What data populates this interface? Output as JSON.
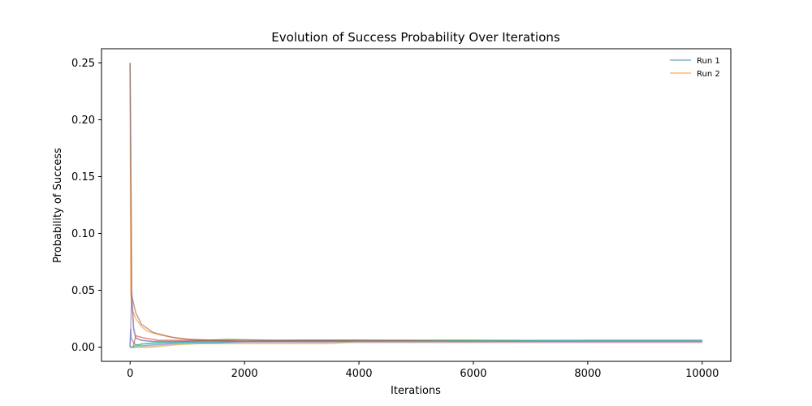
{
  "chart_data": {
    "type": "line",
    "title": "Evolution of Success Probability Over Iterations",
    "xlabel": "Iterations",
    "ylabel": "Probability of Success",
    "xlim": [
      -500,
      10500
    ],
    "ylim": [
      -0.0125,
      0.2625
    ],
    "xticks": [
      0,
      2000,
      4000,
      6000,
      8000,
      10000
    ],
    "xtick_labels": [
      "0",
      "2000",
      "4000",
      "6000",
      "8000",
      "10000"
    ],
    "yticks": [
      0.0,
      0.05,
      0.1,
      0.15,
      0.2,
      0.25
    ],
    "ytick_labels": [
      "0.00",
      "0.05",
      "0.10",
      "0.15",
      "0.20",
      "0.25"
    ],
    "grid": false,
    "legend_position": "top-right",
    "legend": [
      "Run 1",
      "Run 2"
    ],
    "series": [
      {
        "name": "Run 1",
        "color": "#1f77b4",
        "x": [
          0,
          10,
          20,
          60,
          100,
          200,
          400,
          700,
          1000,
          1500,
          2000,
          3000,
          4000,
          5000,
          6000,
          7000,
          8000,
          9000,
          10000
        ],
        "y": [
          0,
          0.016,
          0.008,
          0.004,
          0.002,
          0.001,
          0.002,
          0.003,
          0.004,
          0.004,
          0.005,
          0.006,
          0.006,
          0.006,
          0.006,
          0.006,
          0.006,
          0.006,
          0.006
        ]
      },
      {
        "name": "Run 2",
        "color": "#ff7f0e",
        "x": [
          0,
          10,
          30,
          60,
          100,
          200,
          300,
          500,
          800,
          1200,
          2000,
          3000,
          4000,
          5000,
          6000,
          7000,
          8000,
          9000,
          10000
        ],
        "y": [
          0.25,
          0.05,
          0.033,
          0.03,
          0.025,
          0.018,
          0.014,
          0.011,
          0.008,
          0.006,
          0.005,
          0.005,
          0.005,
          0.005,
          0.005,
          0.005,
          0.005,
          0.005,
          0.005
        ]
      },
      {
        "color": "#2ca02c",
        "x": [
          0,
          50,
          100,
          300,
          600,
          1000,
          1700,
          2500,
          4000,
          6000,
          8000,
          10000
        ],
        "y": [
          0,
          0,
          0.002,
          0.003,
          0.004,
          0.005,
          0.007,
          0.006,
          0.006,
          0.006,
          0.005,
          0.005
        ]
      },
      {
        "color": "#d62728",
        "x": [
          0,
          50,
          100,
          250,
          500,
          1000,
          2000,
          4000,
          6000,
          8000,
          10000
        ],
        "y": [
          0,
          0,
          0.01,
          0.008,
          0.006,
          0.006,
          0.006,
          0.006,
          0.005,
          0.005,
          0.005
        ]
      },
      {
        "color": "#9467bd",
        "x": [
          0,
          30,
          60,
          100,
          200,
          400,
          800,
          1500,
          3000,
          5000,
          7000,
          10000
        ],
        "y": [
          0,
          0.049,
          0.018,
          0.008,
          0.006,
          0.005,
          0.005,
          0.005,
          0.005,
          0.005,
          0.005,
          0.005
        ]
      },
      {
        "color": "#8c564b",
        "x": [
          0,
          30,
          100,
          200,
          400,
          700,
          1000,
          2000,
          4000,
          6000,
          8000,
          10000
        ],
        "y": [
          0.25,
          0.045,
          0.03,
          0.02,
          0.013,
          0.009,
          0.007,
          0.005,
          0.005,
          0.005,
          0.005,
          0.005
        ]
      },
      {
        "color": "#e377c2",
        "x": [
          0,
          300,
          600,
          1000,
          2000,
          4000,
          6000,
          8000,
          10000
        ],
        "y": [
          0,
          0,
          0.002,
          0.003,
          0.004,
          0.004,
          0.004,
          0.004,
          0.004
        ]
      },
      {
        "color": "#7f7f7f",
        "x": [
          0,
          30,
          60,
          100,
          200,
          400,
          1000,
          2000,
          4000,
          6000,
          8000,
          10000
        ],
        "y": [
          0.25,
          0.04,
          0.015,
          0.008,
          0.006,
          0.005,
          0.005,
          0.005,
          0.005,
          0.005,
          0.005,
          0.005
        ]
      },
      {
        "color": "#bcbd22",
        "x": [
          0,
          400,
          800,
          1200,
          2000,
          2500,
          3000,
          3500,
          4000,
          6000,
          8000,
          10000
        ],
        "y": [
          0,
          0,
          0.002,
          0.003,
          0.003,
          0.003,
          0.003,
          0.003,
          0.005,
          0.005,
          0.005,
          0.005
        ]
      },
      {
        "color": "#17becf",
        "x": [
          0,
          100,
          200,
          500,
          1000,
          1500,
          2000,
          3000,
          4000,
          6000,
          8000,
          10000
        ],
        "y": [
          0,
          0,
          0.003,
          0.004,
          0.004,
          0.004,
          0.005,
          0.005,
          0.005,
          0.005,
          0.006,
          0.006
        ]
      }
    ]
  }
}
